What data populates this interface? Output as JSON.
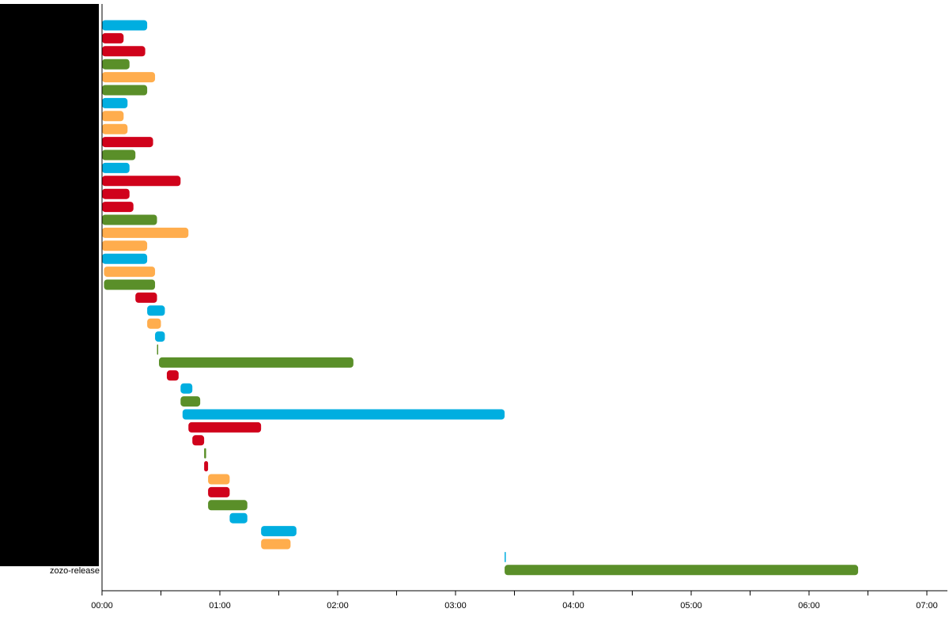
{
  "colors": {
    "blue": "#00aee0",
    "red": "#d0021b",
    "green": "#5a8f29",
    "orange": "#ffad4d",
    "axis": "#000000",
    "redaction": "#000000"
  },
  "chart_data": {
    "type": "gantt",
    "title": "",
    "xlabel": "",
    "ylabel": "",
    "x_unit": "mm:ss",
    "xlim": [
      0,
      420
    ],
    "x_ticks": [
      "00:00",
      "01:00",
      "02:00",
      "03:00",
      "04:00",
      "05:00",
      "06:00",
      "07:00"
    ],
    "row_labels_redacted": true,
    "visible_row_label": "zozo-release",
    "tasks": [
      {
        "start": 0,
        "end": 23,
        "color": "blue"
      },
      {
        "start": 0,
        "end": 11,
        "color": "red"
      },
      {
        "start": 0,
        "end": 22,
        "color": "red"
      },
      {
        "start": 0,
        "end": 14,
        "color": "green"
      },
      {
        "start": 0,
        "end": 27,
        "color": "orange"
      },
      {
        "start": 0,
        "end": 23,
        "color": "green"
      },
      {
        "start": 0,
        "end": 13,
        "color": "blue"
      },
      {
        "start": 0,
        "end": 11,
        "color": "orange"
      },
      {
        "start": 0,
        "end": 13,
        "color": "orange"
      },
      {
        "start": 0,
        "end": 26,
        "color": "red"
      },
      {
        "start": 0,
        "end": 17,
        "color": "green"
      },
      {
        "start": 0,
        "end": 14,
        "color": "blue"
      },
      {
        "start": 0,
        "end": 40,
        "color": "red"
      },
      {
        "start": 0,
        "end": 14,
        "color": "red"
      },
      {
        "start": 0,
        "end": 16,
        "color": "red"
      },
      {
        "start": 0,
        "end": 28,
        "color": "green"
      },
      {
        "start": 0,
        "end": 44,
        "color": "orange"
      },
      {
        "start": 0,
        "end": 23,
        "color": "orange"
      },
      {
        "start": 0,
        "end": 23,
        "color": "blue"
      },
      {
        "start": 1,
        "end": 27,
        "color": "orange"
      },
      {
        "start": 1,
        "end": 27,
        "color": "green"
      },
      {
        "start": 17,
        "end": 28,
        "color": "red"
      },
      {
        "start": 23,
        "end": 32,
        "color": "blue"
      },
      {
        "start": 23,
        "end": 30,
        "color": "orange"
      },
      {
        "start": 27,
        "end": 32,
        "color": "blue"
      },
      {
        "start": 28,
        "end": 28.5,
        "color": "green"
      },
      {
        "start": 29,
        "end": 128,
        "color": "green"
      },
      {
        "start": 33,
        "end": 39,
        "color": "red"
      },
      {
        "start": 40,
        "end": 46,
        "color": "blue"
      },
      {
        "start": 40,
        "end": 50,
        "color": "green"
      },
      {
        "start": 41,
        "end": 205,
        "color": "blue"
      },
      {
        "start": 44,
        "end": 81,
        "color": "red"
      },
      {
        "start": 46,
        "end": 52,
        "color": "red"
      },
      {
        "start": 52,
        "end": 53,
        "color": "green"
      },
      {
        "start": 52,
        "end": 54,
        "color": "red"
      },
      {
        "start": 54,
        "end": 65,
        "color": "orange"
      },
      {
        "start": 54,
        "end": 65,
        "color": "red"
      },
      {
        "start": 54,
        "end": 74,
        "color": "green"
      },
      {
        "start": 65,
        "end": 74,
        "color": "blue"
      },
      {
        "start": 81,
        "end": 99,
        "color": "blue"
      },
      {
        "start": 81,
        "end": 96,
        "color": "orange"
      },
      {
        "start": 205,
        "end": 205.6,
        "color": "blue"
      },
      {
        "start": 205,
        "end": 385,
        "color": "green",
        "label": "zozo-release"
      }
    ]
  }
}
